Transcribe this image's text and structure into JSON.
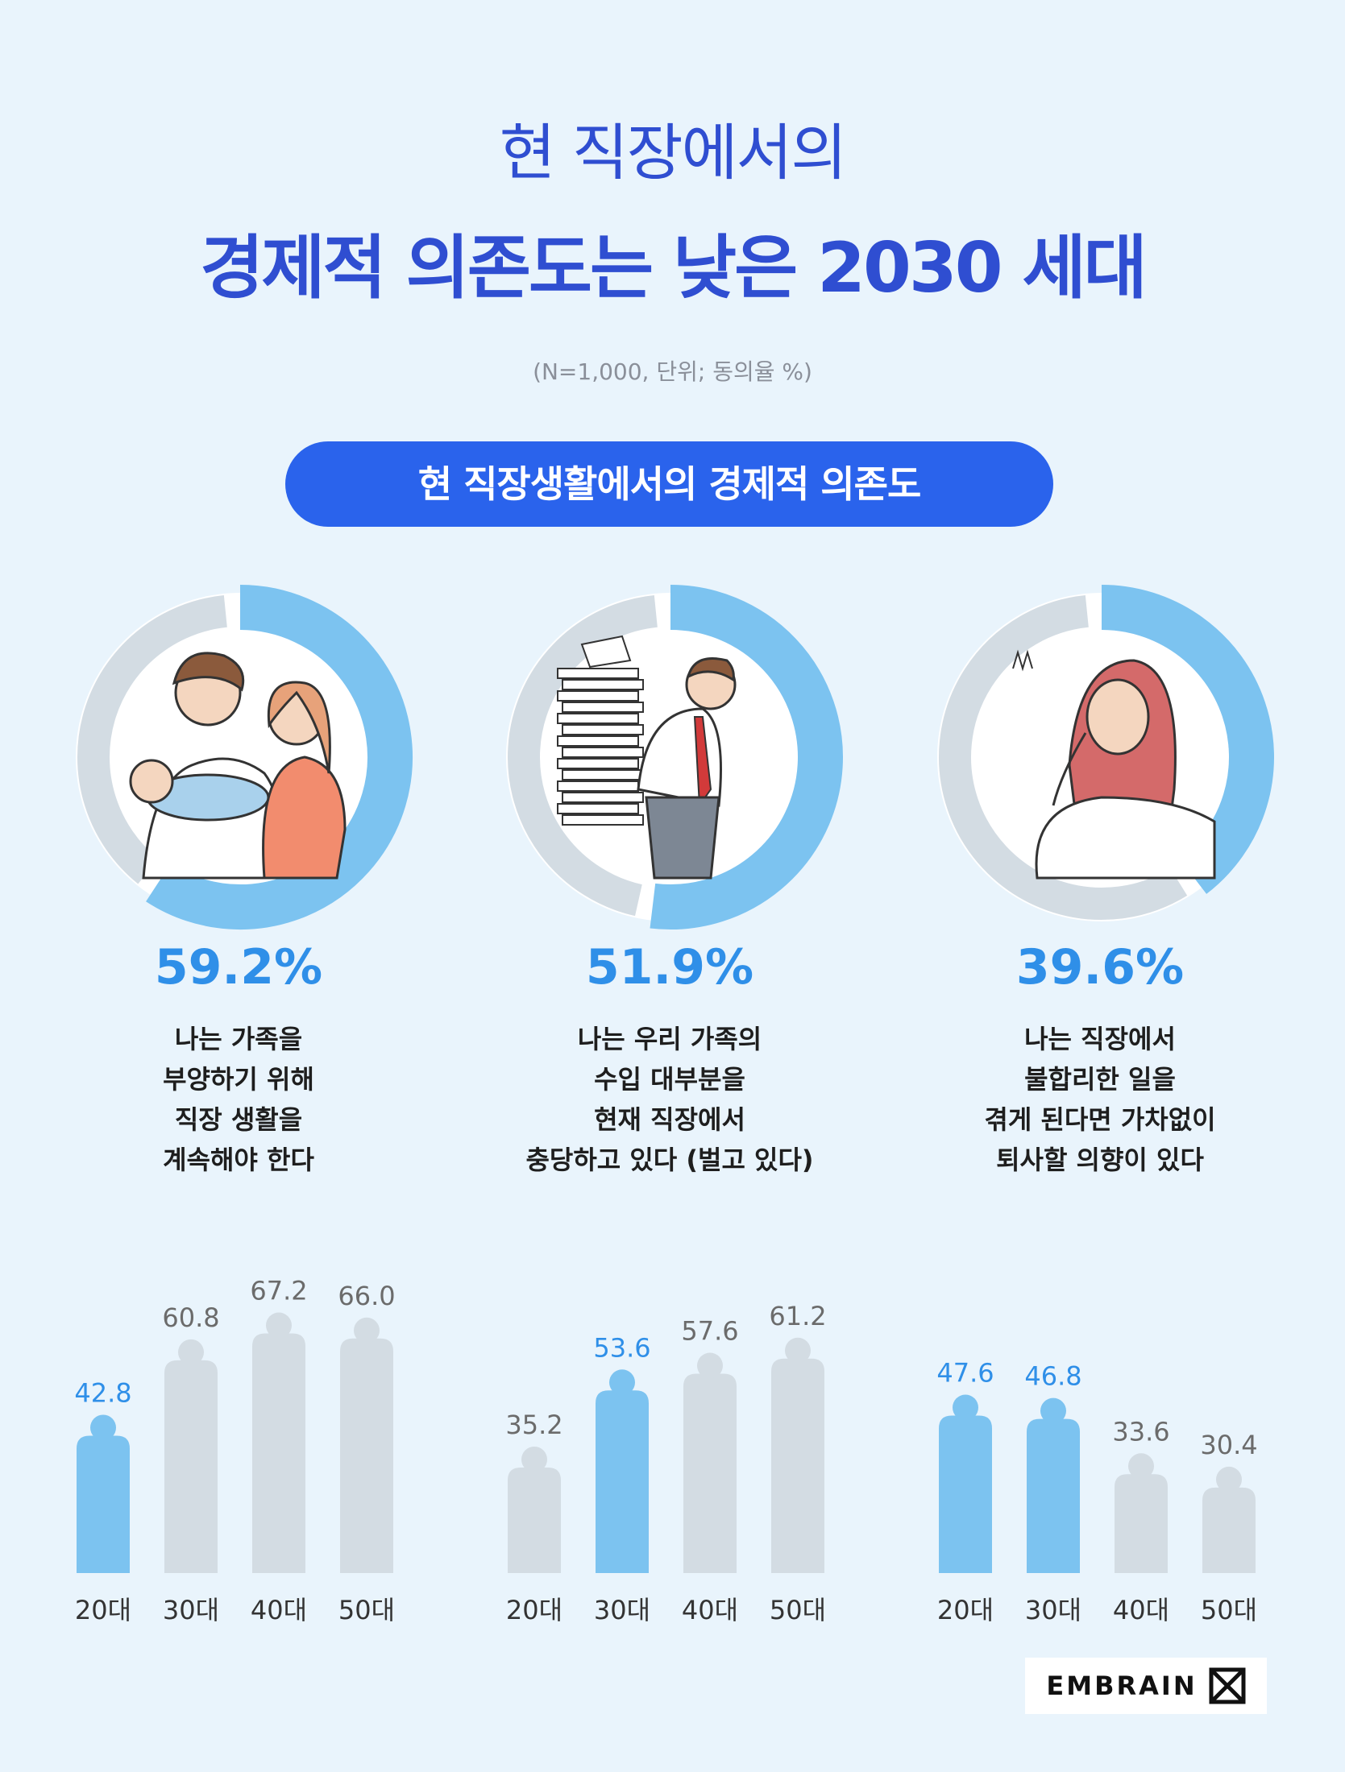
{
  "header": {
    "title_line1": "현 직장에서의",
    "title_line2": "경제적 의존도는 낮은 2030 세대",
    "note": "(N=1,000, 단위; 동의율 %)",
    "section_label": "현 직장생활에서의 경제적 의존도"
  },
  "colors": {
    "accent": "#2a63ec",
    "title": "#2f4ed1",
    "highlight_bar": "#7cc3f0",
    "gray_bar": "#d3dce3",
    "highlight_label": "#2f8fe8",
    "gray_label": "#6b6b6b",
    "background": "#e9f4fc"
  },
  "chart_data": [
    {
      "type": "pie",
      "value": 59.2,
      "value_label": "59.2%",
      "description": [
        "나는 가족을",
        "부양하기 위해",
        "직장 생활을",
        "계속해야 한다"
      ],
      "illustration": "family-with-baby-illustration"
    },
    {
      "type": "pie",
      "value": 51.9,
      "value_label": "51.9%",
      "description": [
        "나는 우리 가족의",
        "수입 대부분을",
        "현재 직장에서",
        "충당하고 있다 (벌고 있다)"
      ],
      "illustration": "man-carrying-papers-illustration"
    },
    {
      "type": "pie",
      "value": 39.6,
      "value_label": "39.6%",
      "description": [
        "나는 직장에서",
        "불합리한 일을",
        "겪게 된다면 가차없이",
        "퇴사할 의향이 있다"
      ],
      "illustration": "stressed-woman-illustration"
    },
    {
      "type": "bar",
      "categories": [
        "20대",
        "30대",
        "40대",
        "50대"
      ],
      "values": [
        42.8,
        60.8,
        67.2,
        66.0
      ],
      "value_labels": [
        "42.8",
        "60.8",
        "67.2",
        "66.0"
      ],
      "highlighted": [
        true,
        false,
        false,
        false
      ]
    },
    {
      "type": "bar",
      "categories": [
        "20대",
        "30대",
        "40대",
        "50대"
      ],
      "values": [
        35.2,
        53.6,
        57.6,
        61.2
      ],
      "value_labels": [
        "35.2",
        "53.6",
        "57.6",
        "61.2"
      ],
      "highlighted": [
        false,
        true,
        false,
        false
      ]
    },
    {
      "type": "bar",
      "categories": [
        "20대",
        "30대",
        "40대",
        "50대"
      ],
      "values": [
        47.6,
        46.8,
        33.6,
        30.4
      ],
      "value_labels": [
        "47.6",
        "46.8",
        "33.6",
        "30.4"
      ],
      "highlighted": [
        true,
        true,
        false,
        false
      ]
    }
  ],
  "logo": {
    "text": "EMBRAIN",
    "icon": "embrain-mark-icon"
  }
}
